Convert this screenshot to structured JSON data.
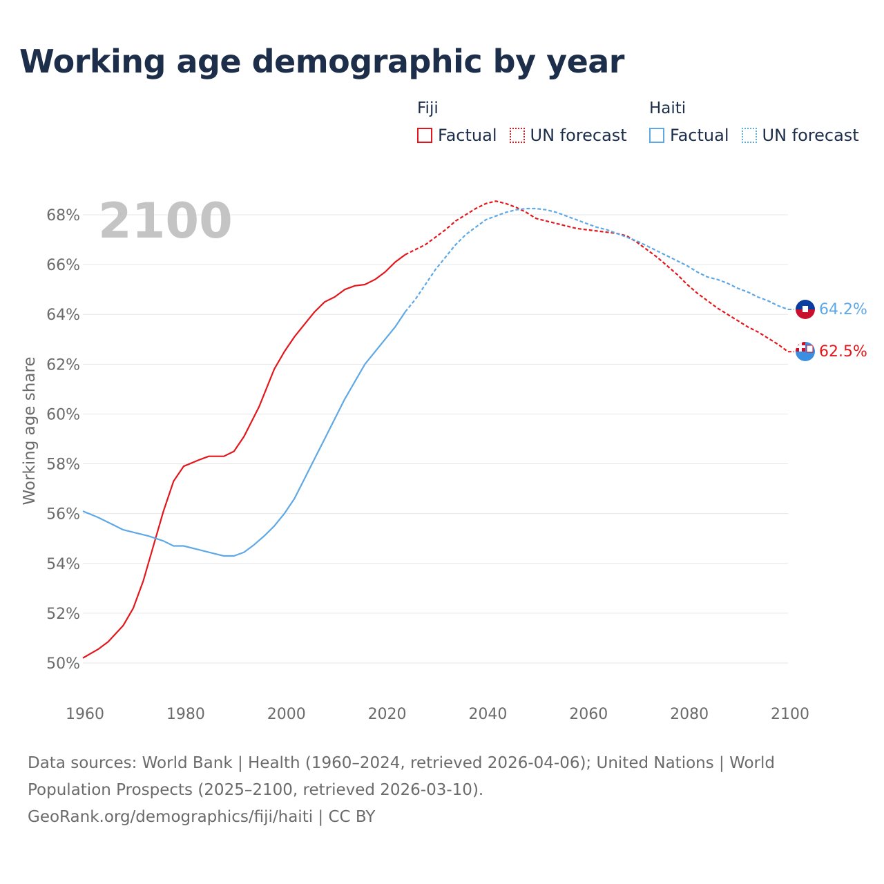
{
  "title": "Working age demographic by year",
  "legend": {
    "groups": [
      {
        "name": "Fiji",
        "color": "#e3161b",
        "factual_label": "Factual",
        "forecast_label": "UN forecast"
      },
      {
        "name": "Haiti",
        "color": "#5ea8e6",
        "factual_label": "Factual",
        "forecast_label": "UN forecast"
      }
    ]
  },
  "year_label": "2100",
  "end_labels": {
    "haiti": "64.2%",
    "fiji": "62.5%"
  },
  "footer": {
    "line1": "Data sources: World Bank | Health (1960–2024, retrieved 2026-04-06); United Nations | World",
    "line2": "Population Prospects (2025–2100, retrieved 2026-03-10).",
    "line3": "GeoRank.org/demographics/fiji/haiti | CC BY"
  },
  "chart_data": {
    "type": "line",
    "title": "Working age demographic by year",
    "xlabel": "",
    "ylabel": "Working age share",
    "xlim": [
      1960,
      2100
    ],
    "ylim": [
      49.2,
      69
    ],
    "x_ticks": [
      "1960",
      "1980",
      "2000",
      "2020",
      "2040",
      "2060",
      "2080",
      "2100"
    ],
    "y_ticks": [
      "50%",
      "52%",
      "54%",
      "56%",
      "58%",
      "60%",
      "62%",
      "64%",
      "66%",
      "68%"
    ],
    "y_tick_values": [
      50,
      52,
      54,
      56,
      58,
      60,
      62,
      64,
      66,
      68
    ],
    "forecast_start": 2024,
    "series": [
      {
        "name": "Fiji",
        "color": "#e3161b",
        "points": [
          [
            1960,
            50.2
          ],
          [
            1963,
            50.55
          ],
          [
            1965,
            50.85
          ],
          [
            1968,
            51.5
          ],
          [
            1970,
            52.2
          ],
          [
            1972,
            53.3
          ],
          [
            1974,
            54.7
          ],
          [
            1976,
            56.1
          ],
          [
            1978,
            57.3
          ],
          [
            1980,
            57.9
          ],
          [
            1983,
            58.15
          ],
          [
            1985,
            58.3
          ],
          [
            1988,
            58.3
          ],
          [
            1990,
            58.5
          ],
          [
            1992,
            59.1
          ],
          [
            1995,
            60.3
          ],
          [
            1998,
            61.8
          ],
          [
            2000,
            62.5
          ],
          [
            2002,
            63.1
          ],
          [
            2004,
            63.6
          ],
          [
            2006,
            64.1
          ],
          [
            2008,
            64.5
          ],
          [
            2010,
            64.7
          ],
          [
            2012,
            65.0
          ],
          [
            2014,
            65.15
          ],
          [
            2016,
            65.2
          ],
          [
            2018,
            65.4
          ],
          [
            2020,
            65.7
          ],
          [
            2022,
            66.1
          ],
          [
            2024,
            66.4
          ],
          [
            2026,
            66.6
          ],
          [
            2028,
            66.8
          ],
          [
            2030,
            67.1
          ],
          [
            2032,
            67.4
          ],
          [
            2034,
            67.75
          ],
          [
            2036,
            68.0
          ],
          [
            2038,
            68.25
          ],
          [
            2040,
            68.45
          ],
          [
            2042,
            68.55
          ],
          [
            2044,
            68.45
          ],
          [
            2046,
            68.3
          ],
          [
            2048,
            68.1
          ],
          [
            2050,
            67.85
          ],
          [
            2052,
            67.75
          ],
          [
            2054,
            67.65
          ],
          [
            2056,
            67.55
          ],
          [
            2058,
            67.45
          ],
          [
            2060,
            67.4
          ],
          [
            2062,
            67.35
          ],
          [
            2064,
            67.3
          ],
          [
            2066,
            67.25
          ],
          [
            2068,
            67.15
          ],
          [
            2070,
            66.9
          ],
          [
            2072,
            66.6
          ],
          [
            2074,
            66.3
          ],
          [
            2076,
            65.95
          ],
          [
            2078,
            65.6
          ],
          [
            2080,
            65.2
          ],
          [
            2082,
            64.85
          ],
          [
            2084,
            64.55
          ],
          [
            2086,
            64.25
          ],
          [
            2088,
            64.0
          ],
          [
            2090,
            63.75
          ],
          [
            2092,
            63.5
          ],
          [
            2094,
            63.3
          ],
          [
            2096,
            63.05
          ],
          [
            2098,
            62.8
          ],
          [
            2100,
            62.5
          ]
        ]
      },
      {
        "name": "Haiti",
        "color": "#5ea8e6",
        "points": [
          [
            1960,
            56.1
          ],
          [
            1963,
            55.85
          ],
          [
            1966,
            55.55
          ],
          [
            1968,
            55.35
          ],
          [
            1970,
            55.25
          ],
          [
            1973,
            55.1
          ],
          [
            1976,
            54.9
          ],
          [
            1978,
            54.7
          ],
          [
            1980,
            54.7
          ],
          [
            1983,
            54.55
          ],
          [
            1986,
            54.4
          ],
          [
            1988,
            54.3
          ],
          [
            1990,
            54.3
          ],
          [
            1992,
            54.45
          ],
          [
            1994,
            54.75
          ],
          [
            1996,
            55.1
          ],
          [
            1998,
            55.5
          ],
          [
            2000,
            56.0
          ],
          [
            2002,
            56.6
          ],
          [
            2004,
            57.4
          ],
          [
            2006,
            58.2
          ],
          [
            2008,
            59.0
          ],
          [
            2010,
            59.8
          ],
          [
            2012,
            60.6
          ],
          [
            2014,
            61.3
          ],
          [
            2016,
            62.0
          ],
          [
            2018,
            62.5
          ],
          [
            2020,
            63.0
          ],
          [
            2022,
            63.5
          ],
          [
            2024,
            64.1
          ],
          [
            2026,
            64.6
          ],
          [
            2028,
            65.2
          ],
          [
            2030,
            65.8
          ],
          [
            2032,
            66.3
          ],
          [
            2034,
            66.8
          ],
          [
            2036,
            67.2
          ],
          [
            2038,
            67.5
          ],
          [
            2040,
            67.8
          ],
          [
            2042,
            67.95
          ],
          [
            2044,
            68.1
          ],
          [
            2046,
            68.2
          ],
          [
            2048,
            68.25
          ],
          [
            2050,
            68.25
          ],
          [
            2052,
            68.2
          ],
          [
            2054,
            68.1
          ],
          [
            2056,
            67.95
          ],
          [
            2058,
            67.8
          ],
          [
            2060,
            67.65
          ],
          [
            2062,
            67.5
          ],
          [
            2064,
            67.4
          ],
          [
            2066,
            67.25
          ],
          [
            2068,
            67.1
          ],
          [
            2070,
            66.95
          ],
          [
            2072,
            66.75
          ],
          [
            2074,
            66.55
          ],
          [
            2076,
            66.35
          ],
          [
            2078,
            66.15
          ],
          [
            2080,
            65.95
          ],
          [
            2082,
            65.7
          ],
          [
            2084,
            65.5
          ],
          [
            2086,
            65.4
          ],
          [
            2088,
            65.25
          ],
          [
            2090,
            65.05
          ],
          [
            2092,
            64.9
          ],
          [
            2094,
            64.7
          ],
          [
            2096,
            64.55
          ],
          [
            2098,
            64.35
          ],
          [
            2100,
            64.2
          ]
        ]
      }
    ]
  }
}
